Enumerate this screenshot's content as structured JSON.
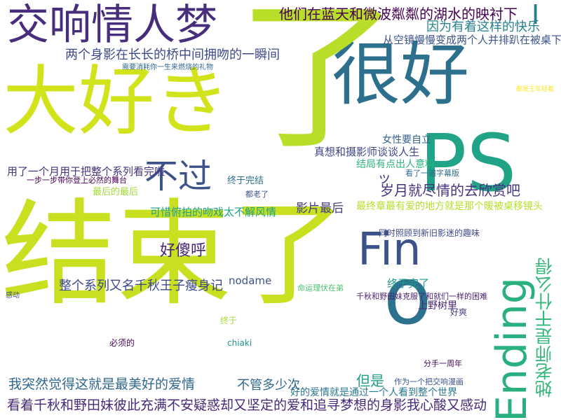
{
  "words": [
    {
      "text": "结束了",
      "color": "#c8e020"
    },
    {
      "text": "大好き",
      "color": "#d2e21b"
    },
    {
      "text": "很好",
      "color": "#2d708e"
    },
    {
      "text": "了",
      "color": "#b8de29"
    },
    {
      "text": "PS",
      "color": "#20a386"
    },
    {
      "text": "交响情人梦",
      "color": "#472d7b"
    },
    {
      "text": "不过",
      "color": "#3b528b"
    },
    {
      "text": "Fin",
      "color": "#3b528b"
    },
    {
      "text": "o",
      "color": "#2c728e"
    },
    {
      "text": "Ending",
      "color": "#2ab07f"
    },
    {
      "text": "她老师是干什么得",
      "color": "#35b779"
    },
    {
      "text": "他们在蓝天和微波粼粼的湖水的映衬下",
      "color": "#440154"
    },
    {
      "text": "因为有着这样的快乐",
      "color": "#26828e"
    },
    {
      "text": "两个身影在长长的桥中间拥吻的一瞬间",
      "color": "#3e4a89"
    },
    {
      "text": "从空镜慢慢变成两个人并排趴在被桌下",
      "color": "#3b528b"
    },
    {
      "text": "看着千秋和野田妹彼此充满不安疑惑却又坚定的爱和追寻梦想的身影我心酸又感动",
      "color": "#482878"
    },
    {
      "text": "我突然觉得这就是最美好的爱情",
      "color": "#31688e"
    },
    {
      "text": "整个系列又名千秋王子瘦身记",
      "color": "#3e4989"
    },
    {
      "text": "好傻呼",
      "color": "#482374"
    },
    {
      "text": "不管多少次",
      "color": "#31688e"
    },
    {
      "text": "但是",
      "color": "#1f9e89"
    },
    {
      "text": "岁月就尽情的去欣赏吧",
      "color": "#46327e"
    },
    {
      "text": "真想和摄影师谈谈人生",
      "color": "#3f4788"
    },
    {
      "text": "影片最后",
      "color": "#433e85"
    },
    {
      "text": "最终章最有爱的地方就是那个暖被桌移镜头",
      "color": "#b5de2b"
    },
    {
      "text": "可惜俯拍的吻戏太不解风情",
      "color": "#1fa088"
    },
    {
      "text": "用了一个月用于把整个系列看完啦",
      "color": "#46337f"
    },
    {
      "text": "终于完了",
      "color": "#1f9a8a"
    },
    {
      "text": "上野树里",
      "color": "#482576"
    },
    {
      "text": "nodame",
      "color": "#3b528b"
    },
    {
      "text": "好的爱情就是通过一个人看到整个世界",
      "color": "#2a768e"
    },
    {
      "text": "女性要自立",
      "color": "#34608d"
    },
    {
      "text": "结局有点出人意料",
      "color": "#2db27d"
    },
    {
      "text": "终于完结",
      "color": "#2e6f8e"
    },
    {
      "text": "ッ",
      "color": "#424086"
    },
    {
      "text": "最后的最后",
      "color": "#a2da37"
    },
    {
      "text": "同时照顾到新旧影迷的趣味",
      "color": "#3f4889"
    },
    {
      "text": "千秋和野田妹克服了和就们一样的困难",
      "color": "#481f70"
    },
    {
      "text": "命运理伏在弟",
      "color": "#4ac16d"
    },
    {
      "text": "作为一个把交响漫画",
      "color": "#3b528b"
    },
    {
      "text": "分手一周年",
      "color": "#46085c"
    },
    {
      "text": "chiaki",
      "color": "#1f958b"
    },
    {
      "text": "必须的",
      "color": "#450559"
    },
    {
      "text": "一步一步带你登上必然的舞台",
      "color": "#440154"
    },
    {
      "text": "需要消耗你一生来燃烧的礼物",
      "color": "#31688e"
    },
    {
      "text": "看了一遍字幕版",
      "color": "#2e6e8e"
    },
    {
      "text": "都是王年轻着",
      "color": "#fde725"
    },
    {
      "text": "I",
      "color": "#287d8e"
    },
    {
      "text": "好爽",
      "color": "#443a83"
    },
    {
      "text": "感动",
      "color": "#3e4a89"
    },
    {
      "text": "终于",
      "color": "#a5db36"
    },
    {
      "text": "都老了",
      "color": "#3a548c"
    }
  ]
}
